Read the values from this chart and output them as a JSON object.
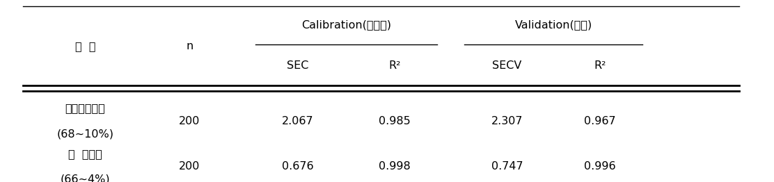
{
  "col1_header": "초  종",
  "col2_header": "n",
  "calib_header": "Calibration(검량식)",
  "valid_header": "Validation(검증)",
  "sub_calib": [
    "SEC",
    "R²"
  ],
  "sub_valid": [
    "SECV",
    "R²"
  ],
  "rows": [
    {
      "name": "오차드그라스",
      "name2": "(68~10%)",
      "n": "200",
      "sec": "2.067",
      "r2_calib": "0.985",
      "secv": "2.307",
      "r2_valid": "0.967"
    },
    {
      "name": "톨  페스큐",
      "name2": "(66~4%)",
      "n": "200",
      "sec": "0.676",
      "r2_calib": "0.998",
      "secv": "0.747",
      "r2_valid": "0.996"
    }
  ],
  "bg_color": "#ffffff",
  "text_color": "#000000",
  "font_size": 11.5
}
